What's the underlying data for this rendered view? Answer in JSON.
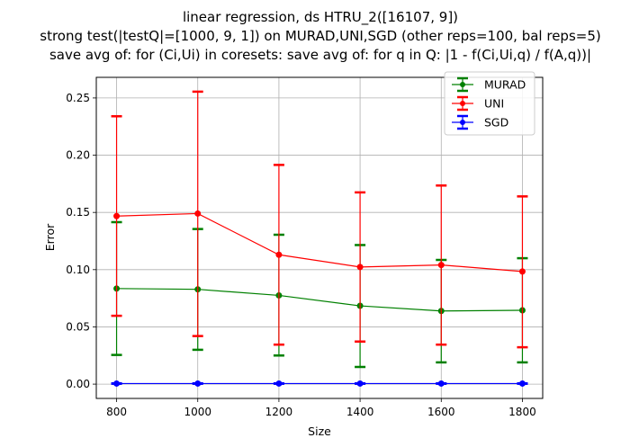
{
  "chart_data": {
    "type": "line",
    "title": [
      "linear regression, ds HTRU_2([16107, 9])",
      "strong test(|testQ|=[1000, 9, 1]) on MURAD,UNI,SGD (other reps=100, bal reps=5)",
      "save avg of: for (Ci,Ui) in coresets: save avg of: for q in Q: |1 - f(Ci,Ui,q) / f(A,q))|"
    ],
    "xlabel": "Size",
    "ylabel": "Error",
    "x": [
      800,
      1000,
      1200,
      1400,
      1600,
      1800
    ],
    "xticks": [
      800,
      1000,
      1200,
      1400,
      1600,
      1800
    ],
    "xlim": [
      750,
      1850
    ],
    "yticks": [
      0.0,
      0.05,
      0.1,
      0.15,
      0.2,
      0.25
    ],
    "ytick_labels": [
      "0.00",
      "0.05",
      "0.10",
      "0.15",
      "0.20",
      "0.25"
    ],
    "ylim": [
      -0.0125,
      0.268
    ],
    "grid": true,
    "legend_position": "top-right",
    "series": [
      {
        "name": "MURAD",
        "color": "#008000",
        "values": [
          0.0835,
          0.0828,
          0.0775,
          0.0684,
          0.0639,
          0.0645
        ],
        "err_low": [
          0.0255,
          0.03,
          0.025,
          0.015,
          0.019,
          0.019
        ],
        "err_high": [
          0.1415,
          0.1355,
          0.1305,
          0.1215,
          0.1085,
          0.11
        ]
      },
      {
        "name": "UNI",
        "color": "#ff0000",
        "values": [
          0.1468,
          0.149,
          0.113,
          0.1023,
          0.1041,
          0.0984
        ],
        "err_low": [
          0.0597,
          0.042,
          0.0345,
          0.0372,
          0.0345,
          0.0322
        ],
        "err_high": [
          0.234,
          0.2555,
          0.1915,
          0.1675,
          0.1735,
          0.164
        ]
      },
      {
        "name": "SGD",
        "color": "#0000ff",
        "values": [
          0.0005,
          0.0005,
          0.0005,
          0.0005,
          0.0005,
          0.0005
        ],
        "err_low": [
          0.0003,
          0.0003,
          0.0003,
          0.0003,
          0.0003,
          0.0003
        ],
        "err_high": [
          0.0007,
          0.0007,
          0.0007,
          0.0007,
          0.0007,
          0.0007
        ]
      }
    ]
  }
}
